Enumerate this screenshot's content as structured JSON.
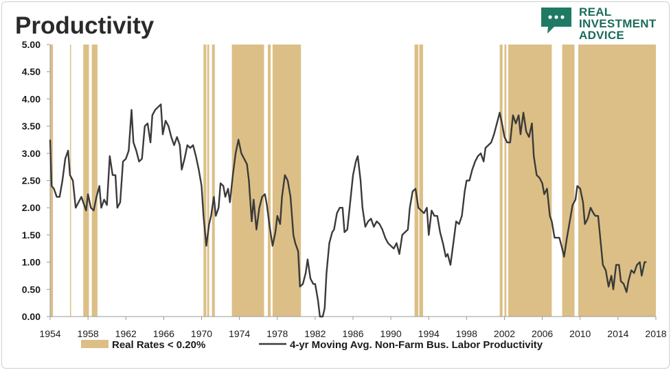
{
  "title": "Productivity",
  "logo": {
    "line1": "REAL",
    "line2": "INVESTMENT",
    "line3": "ADVICE",
    "icon": "speech-bubble-icon",
    "color": "#1f7a63"
  },
  "chart_data": {
    "type": "line",
    "title": "Productivity",
    "xlabel": "",
    "ylabel": "",
    "xlim": [
      1954,
      2018
    ],
    "ylim": [
      0,
      5
    ],
    "x_ticks": [
      "1954",
      "1958",
      "1962",
      "1966",
      "1970",
      "1974",
      "1978",
      "1982",
      "1986",
      "1990",
      "1994",
      "1998",
      "2002",
      "2006",
      "2010",
      "2014",
      "2018"
    ],
    "y_ticks": [
      "0.00",
      "0.50",
      "1.00",
      "1.50",
      "2.00",
      "2.50",
      "3.00",
      "3.50",
      "4.00",
      "4.50",
      "5.00"
    ],
    "grid": false,
    "legend_position": "bottom",
    "series": [
      {
        "name": "4-yr Moving Avg. Non-Farm Bus. Labor Productivity",
        "kind": "line",
        "color": "#3a3a3a",
        "points": [
          [
            1954.0,
            3.25
          ],
          [
            1954.15,
            2.4
          ],
          [
            1954.4,
            2.35
          ],
          [
            1954.7,
            2.2
          ],
          [
            1955.0,
            2.2
          ],
          [
            1955.3,
            2.5
          ],
          [
            1955.6,
            2.9
          ],
          [
            1955.9,
            3.05
          ],
          [
            1956.1,
            2.6
          ],
          [
            1956.4,
            2.5
          ],
          [
            1956.7,
            2.0
          ],
          [
            1957.0,
            2.1
          ],
          [
            1957.3,
            2.2
          ],
          [
            1957.6,
            2.05
          ],
          [
            1957.8,
            1.95
          ],
          [
            1958.0,
            2.25
          ],
          [
            1958.3,
            2.0
          ],
          [
            1958.6,
            1.95
          ],
          [
            1958.9,
            2.2
          ],
          [
            1959.2,
            2.4
          ],
          [
            1959.4,
            2.0
          ],
          [
            1959.7,
            2.15
          ],
          [
            1960.0,
            2.05
          ],
          [
            1960.3,
            2.95
          ],
          [
            1960.6,
            2.6
          ],
          [
            1960.9,
            2.6
          ],
          [
            1961.1,
            2.0
          ],
          [
            1961.4,
            2.1
          ],
          [
            1961.7,
            2.85
          ],
          [
            1962.0,
            2.9
          ],
          [
            1962.3,
            3.05
          ],
          [
            1962.6,
            3.8
          ],
          [
            1962.8,
            3.2
          ],
          [
            1963.1,
            3.05
          ],
          [
            1963.4,
            2.85
          ],
          [
            1963.7,
            2.9
          ],
          [
            1964.0,
            3.5
          ],
          [
            1964.3,
            3.55
          ],
          [
            1964.6,
            3.2
          ],
          [
            1964.8,
            3.7
          ],
          [
            1965.1,
            3.8
          ],
          [
            1965.4,
            3.85
          ],
          [
            1965.7,
            3.9
          ],
          [
            1965.9,
            3.35
          ],
          [
            1966.2,
            3.6
          ],
          [
            1966.5,
            3.5
          ],
          [
            1966.8,
            3.3
          ],
          [
            1967.1,
            3.15
          ],
          [
            1967.4,
            3.3
          ],
          [
            1967.7,
            3.15
          ],
          [
            1967.9,
            2.7
          ],
          [
            1968.2,
            2.9
          ],
          [
            1968.5,
            3.15
          ],
          [
            1968.8,
            3.1
          ],
          [
            1969.1,
            3.15
          ],
          [
            1969.4,
            2.95
          ],
          [
            1969.7,
            2.7
          ],
          [
            1970.0,
            2.4
          ],
          [
            1970.2,
            1.85
          ],
          [
            1970.5,
            1.3
          ],
          [
            1970.8,
            1.7
          ],
          [
            1971.0,
            1.85
          ],
          [
            1971.3,
            2.2
          ],
          [
            1971.5,
            1.85
          ],
          [
            1971.8,
            2.0
          ],
          [
            1972.0,
            2.45
          ],
          [
            1972.3,
            2.4
          ],
          [
            1972.5,
            2.2
          ],
          [
            1972.8,
            2.35
          ],
          [
            1973.0,
            2.1
          ],
          [
            1973.3,
            2.6
          ],
          [
            1973.6,
            3.0
          ],
          [
            1973.9,
            3.25
          ],
          [
            1974.2,
            3.0
          ],
          [
            1974.5,
            2.9
          ],
          [
            1974.8,
            2.8
          ],
          [
            1975.0,
            2.5
          ],
          [
            1975.3,
            1.75
          ],
          [
            1975.5,
            2.15
          ],
          [
            1975.8,
            1.6
          ],
          [
            1976.1,
            2.0
          ],
          [
            1976.4,
            2.2
          ],
          [
            1976.7,
            2.25
          ],
          [
            1976.9,
            2.05
          ],
          [
            1977.2,
            1.65
          ],
          [
            1977.5,
            1.3
          ],
          [
            1977.8,
            1.55
          ],
          [
            1978.0,
            1.85
          ],
          [
            1978.3,
            1.7
          ],
          [
            1978.5,
            2.2
          ],
          [
            1978.8,
            2.6
          ],
          [
            1979.1,
            2.5
          ],
          [
            1979.4,
            2.2
          ],
          [
            1979.7,
            1.5
          ],
          [
            1979.9,
            1.35
          ],
          [
            1980.2,
            1.2
          ],
          [
            1980.4,
            0.55
          ],
          [
            1980.7,
            0.6
          ],
          [
            1981.0,
            0.8
          ],
          [
            1981.2,
            1.05
          ],
          [
            1981.5,
            0.7
          ],
          [
            1981.8,
            0.6
          ],
          [
            1982.0,
            0.6
          ],
          [
            1982.3,
            0.3
          ],
          [
            1982.5,
            0.0
          ],
          [
            1982.8,
            0.0
          ],
          [
            1983.0,
            0.15
          ],
          [
            1983.2,
            0.8
          ],
          [
            1983.5,
            1.35
          ],
          [
            1983.8,
            1.55
          ],
          [
            1984.0,
            1.6
          ],
          [
            1984.3,
            1.9
          ],
          [
            1984.6,
            2.0
          ],
          [
            1984.9,
            2.0
          ],
          [
            1985.1,
            1.55
          ],
          [
            1985.4,
            1.6
          ],
          [
            1985.7,
            2.1
          ],
          [
            1986.0,
            2.6
          ],
          [
            1986.3,
            2.85
          ],
          [
            1986.5,
            2.95
          ],
          [
            1986.8,
            2.5
          ],
          [
            1987.0,
            2.0
          ],
          [
            1987.3,
            1.65
          ],
          [
            1987.6,
            1.75
          ],
          [
            1987.9,
            1.8
          ],
          [
            1988.2,
            1.65
          ],
          [
            1988.5,
            1.75
          ],
          [
            1988.8,
            1.7
          ],
          [
            1989.1,
            1.6
          ],
          [
            1989.4,
            1.45
          ],
          [
            1989.7,
            1.35
          ],
          [
            1990.0,
            1.3
          ],
          [
            1990.3,
            1.25
          ],
          [
            1990.6,
            1.35
          ],
          [
            1990.9,
            1.15
          ],
          [
            1991.2,
            1.5
          ],
          [
            1991.5,
            1.55
          ],
          [
            1991.8,
            1.6
          ],
          [
            1992.0,
            2.0
          ],
          [
            1992.3,
            2.3
          ],
          [
            1992.6,
            2.35
          ],
          [
            1992.9,
            2.0
          ],
          [
            1993.2,
            1.95
          ],
          [
            1993.5,
            1.9
          ],
          [
            1993.8,
            2.0
          ],
          [
            1994.0,
            1.5
          ],
          [
            1994.3,
            1.95
          ],
          [
            1994.6,
            1.85
          ],
          [
            1994.9,
            1.85
          ],
          [
            1995.2,
            1.55
          ],
          [
            1995.5,
            1.35
          ],
          [
            1995.8,
            1.1
          ],
          [
            1996.0,
            1.15
          ],
          [
            1996.3,
            0.95
          ],
          [
            1996.6,
            1.35
          ],
          [
            1996.9,
            1.75
          ],
          [
            1997.2,
            1.7
          ],
          [
            1997.5,
            1.85
          ],
          [
            1997.8,
            2.3
          ],
          [
            1998.0,
            2.5
          ],
          [
            1998.3,
            2.5
          ],
          [
            1998.6,
            2.7
          ],
          [
            1998.9,
            2.85
          ],
          [
            1999.2,
            2.95
          ],
          [
            1999.5,
            3.0
          ],
          [
            1999.8,
            2.85
          ],
          [
            2000.0,
            3.1
          ],
          [
            2000.3,
            3.15
          ],
          [
            2000.6,
            3.2
          ],
          [
            2000.9,
            3.35
          ],
          [
            2001.2,
            3.55
          ],
          [
            2001.5,
            3.75
          ],
          [
            2001.8,
            3.5
          ],
          [
            2002.0,
            3.3
          ],
          [
            2002.3,
            3.2
          ],
          [
            2002.6,
            3.2
          ],
          [
            2002.9,
            3.7
          ],
          [
            2003.2,
            3.55
          ],
          [
            2003.5,
            3.7
          ],
          [
            2003.7,
            3.35
          ],
          [
            2004.0,
            3.75
          ],
          [
            2004.3,
            3.4
          ],
          [
            2004.6,
            3.3
          ],
          [
            2004.9,
            3.55
          ],
          [
            2005.1,
            2.95
          ],
          [
            2005.4,
            2.6
          ],
          [
            2005.7,
            2.55
          ],
          [
            2006.0,
            2.45
          ],
          [
            2006.2,
            2.25
          ],
          [
            2006.5,
            2.35
          ],
          [
            2006.8,
            1.85
          ],
          [
            2007.0,
            1.75
          ],
          [
            2007.3,
            1.45
          ],
          [
            2007.5,
            1.45
          ],
          [
            2007.8,
            1.45
          ],
          [
            2008.1,
            1.25
          ],
          [
            2008.3,
            1.1
          ],
          [
            2008.6,
            1.45
          ],
          [
            2008.9,
            1.75
          ],
          [
            2009.2,
            2.05
          ],
          [
            2009.5,
            2.15
          ],
          [
            2009.7,
            2.4
          ],
          [
            2010.0,
            2.35
          ],
          [
            2010.3,
            2.1
          ],
          [
            2010.5,
            1.7
          ],
          [
            2010.8,
            1.8
          ],
          [
            2011.1,
            2.0
          ],
          [
            2011.4,
            1.9
          ],
          [
            2011.6,
            1.85
          ],
          [
            2011.9,
            1.85
          ],
          [
            2012.2,
            1.3
          ],
          [
            2012.4,
            0.95
          ],
          [
            2012.7,
            0.85
          ],
          [
            2013.0,
            0.55
          ],
          [
            2013.3,
            0.75
          ],
          [
            2013.5,
            0.5
          ],
          [
            2013.8,
            0.95
          ],
          [
            2014.1,
            0.95
          ],
          [
            2014.3,
            0.65
          ],
          [
            2014.6,
            0.6
          ],
          [
            2014.9,
            0.45
          ],
          [
            2015.1,
            0.65
          ],
          [
            2015.4,
            0.85
          ],
          [
            2015.7,
            0.8
          ],
          [
            2016.0,
            0.95
          ],
          [
            2016.3,
            1.0
          ],
          [
            2016.5,
            0.75
          ],
          [
            2016.8,
            1.0
          ],
          [
            2017.0,
            1.0
          ]
        ]
      },
      {
        "name": "Real Rates < 0.20%",
        "kind": "shaded_bands",
        "color": "#dcbf86",
        "ranges": [
          [
            1954.0,
            1954.3
          ],
          [
            1956.1,
            1956.2
          ],
          [
            1957.5,
            1958.1
          ],
          [
            1958.4,
            1959.0
          ],
          [
            1970.2,
            1970.5
          ],
          [
            1970.6,
            1970.8
          ],
          [
            1971.1,
            1971.4
          ],
          [
            1973.2,
            1976.6
          ],
          [
            1977.0,
            1977.3
          ],
          [
            1977.5,
            1980.5
          ],
          [
            1992.5,
            1992.9
          ],
          [
            1993.0,
            1993.4
          ],
          [
            2001.5,
            2001.8
          ],
          [
            2002.0,
            2002.2
          ],
          [
            2002.4,
            2007.0
          ],
          [
            2008.1,
            2009.4
          ],
          [
            2009.8,
            2018.0
          ]
        ]
      }
    ]
  },
  "legend": {
    "bands_label": "Real Rates < 0.20%",
    "line_label": "4-yr Moving Avg. Non-Farm Bus. Labor Productivity"
  }
}
